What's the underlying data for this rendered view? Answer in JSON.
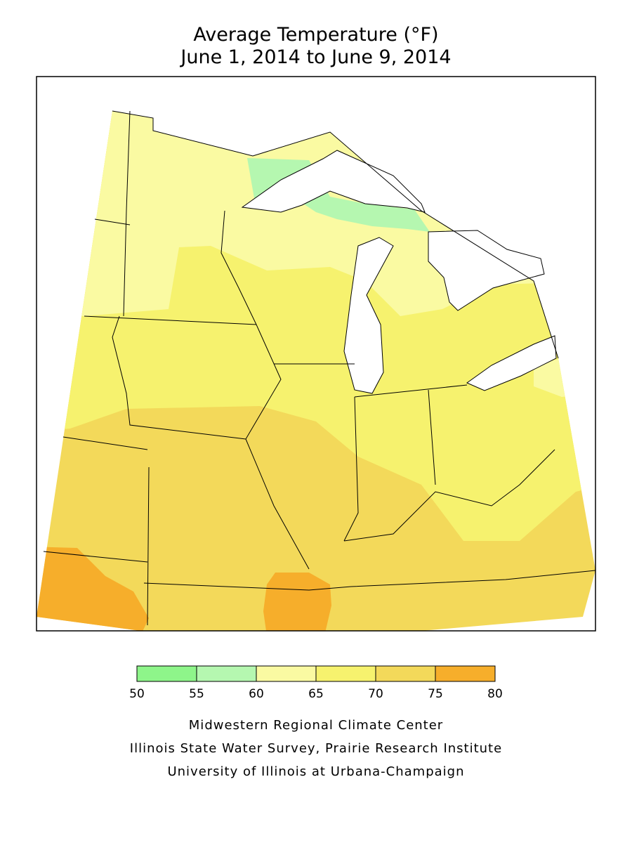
{
  "header": {
    "title": "Average Temperature (°F)",
    "subtitle": "June 1, 2014 to June 9, 2014"
  },
  "legend": {
    "ticks": [
      50,
      55,
      60,
      65,
      70,
      75,
      80
    ],
    "colors": [
      "#8ef58a",
      "#b5f7b0",
      "#fafaa2",
      "#f6f26e",
      "#f3d95a",
      "#f6ae2b"
    ]
  },
  "credits": [
    "Midwestern Regional Climate Center",
    "Illinois State Water Survey, Prairie Research Institute",
    "University of Illinois at Urbana-Champaign"
  ]
}
